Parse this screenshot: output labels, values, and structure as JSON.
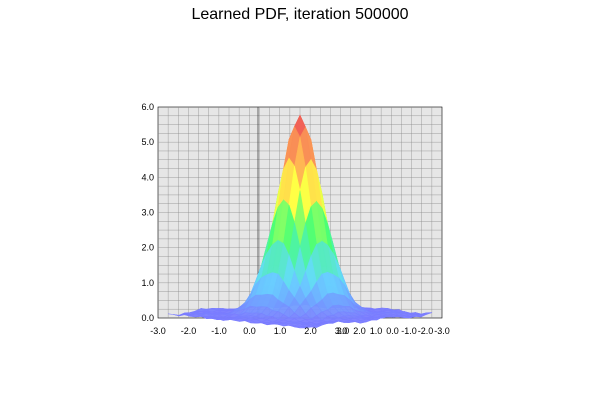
{
  "chart_data": {
    "type": "surface3d",
    "title": "Learned PDF, iteration 500000",
    "xlabel": "",
    "ylabel": "",
    "zlabel": "",
    "z_ticks": [
      "0.0",
      "1.0",
      "2.0",
      "3.0",
      "4.0",
      "5.0",
      "6.0"
    ],
    "x_ticks": [
      "-3.0",
      "-2.0",
      "-1.0",
      "0.0",
      "1.0",
      "2.0",
      "3.0"
    ],
    "y_ticks": [
      "3.0",
      "2.0",
      "1.0",
      "0.0",
      "-1.0",
      "-2.0",
      "-3.0"
    ],
    "zlim": [
      0,
      6
    ],
    "xlim": [
      -3,
      3
    ],
    "ylim": [
      -3,
      3
    ],
    "peak_z": 5.5,
    "grid": true,
    "colormap": [
      "#7a7cff",
      "#66d9ff",
      "#44ff77",
      "#ffff44",
      "#ffaa55",
      "#ee5555"
    ]
  }
}
